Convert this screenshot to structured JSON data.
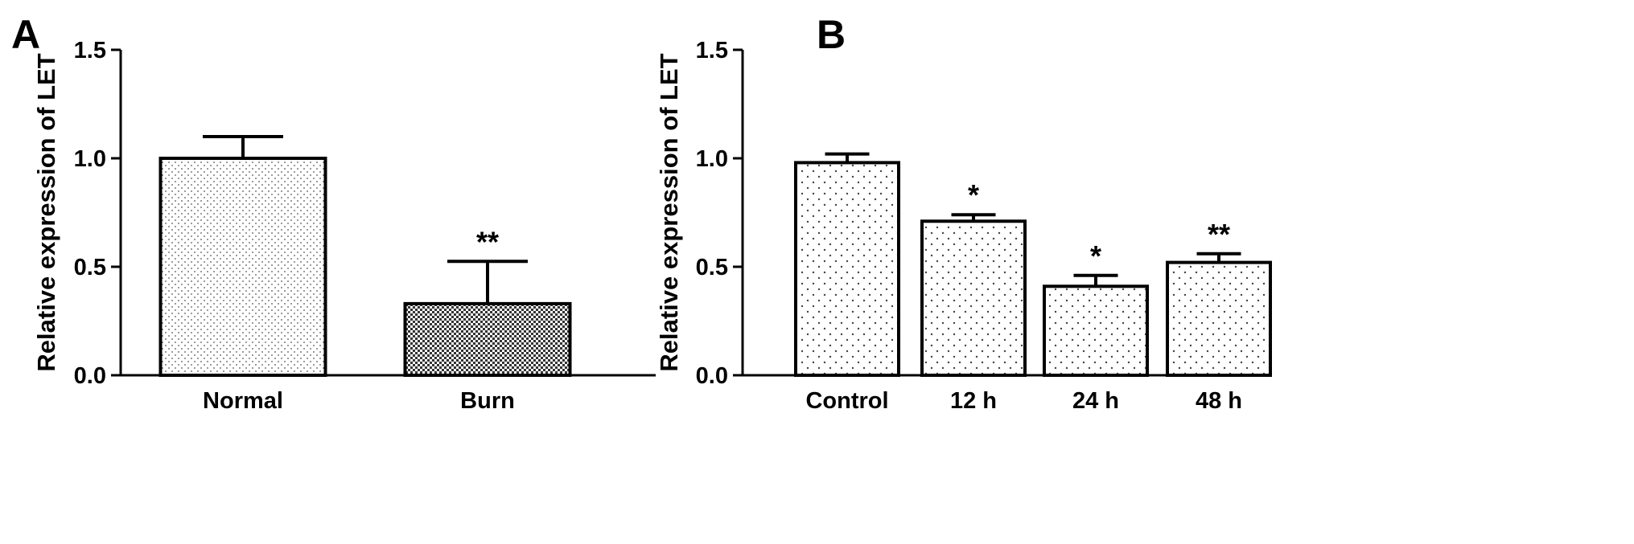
{
  "chart_data": [
    {
      "panel": "A",
      "type": "bar",
      "ylabel": "Relative expression of  LET",
      "ylim": [
        0,
        1.5
      ],
      "yticks": [
        "0.0",
        "0.5",
        "1.0",
        "1.5"
      ],
      "categories": [
        "Normal",
        "Burn"
      ],
      "values": [
        1.0,
        0.33
      ],
      "errors": [
        0.1,
        0.195
      ],
      "significance": [
        "",
        "**"
      ],
      "patterns": [
        "fine-dots",
        "checker"
      ]
    },
    {
      "panel": "B",
      "type": "bar",
      "ylabel": "Relative expression of LET",
      "ylim": [
        0,
        1.5
      ],
      "yticks": [
        "0.0",
        "0.5",
        "1.0",
        "1.5"
      ],
      "categories": [
        "Control",
        "12 h",
        "24 h",
        "48 h"
      ],
      "values": [
        0.98,
        0.71,
        0.41,
        0.52
      ],
      "errors": [
        0.04,
        0.03,
        0.05,
        0.04
      ],
      "significance": [
        "",
        "*",
        "*",
        "**"
      ],
      "patterns": [
        "sparse-dots",
        "sparse-dots",
        "sparse-dots",
        "sparse-dots"
      ]
    }
  ]
}
